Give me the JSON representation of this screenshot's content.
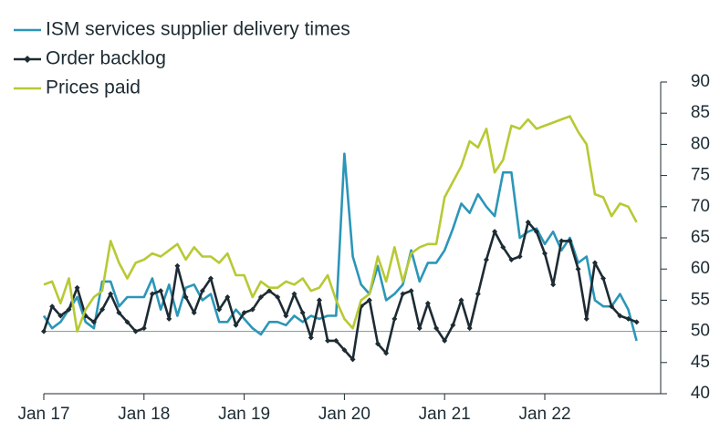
{
  "chart_data": {
    "type": "line",
    "categories": [
      "Jan 17",
      null,
      null,
      null,
      null,
      null,
      null,
      null,
      null,
      null,
      null,
      null,
      "Jan 18",
      null,
      null,
      null,
      null,
      null,
      null,
      null,
      null,
      null,
      null,
      null,
      "Jan 19",
      null,
      null,
      null,
      null,
      null,
      null,
      null,
      null,
      null,
      null,
      null,
      "Jan 20",
      null,
      null,
      null,
      null,
      null,
      null,
      null,
      null,
      null,
      null,
      null,
      "Jan 21",
      null,
      null,
      null,
      null,
      null,
      null,
      null,
      null,
      null,
      null,
      null,
      "Jan 22",
      null,
      null,
      null,
      null,
      null,
      null,
      null,
      null,
      null,
      null,
      null
    ],
    "series": [
      {
        "name": "ISM services supplier delivery times",
        "color": "#2b96b8",
        "values": [
          52.5,
          50.5,
          51.5,
          53.5,
          55.5,
          51.5,
          50.5,
          58,
          58,
          54,
          55.5,
          55.5,
          55.5,
          58.5,
          53.5,
          57.5,
          52.5,
          57,
          57.5,
          55,
          56,
          51.5,
          51.5,
          53.5,
          52,
          50.5,
          49.5,
          51.5,
          51.5,
          51,
          52.5,
          51.5,
          52.5,
          52,
          52.5,
          52.5,
          78.5,
          62,
          57.5,
          56,
          60.5,
          55,
          56,
          57.5,
          63,
          58,
          61,
          61,
          63,
          66.5,
          70.5,
          69,
          72,
          70,
          68.5,
          75.5,
          75.5,
          65,
          66,
          66.5,
          64,
          66,
          63,
          65,
          61,
          62,
          55,
          54,
          54,
          56,
          53.5,
          48.5
        ]
      },
      {
        "name": "Order backlog",
        "color": "#1d2b33",
        "marker": true,
        "values": [
          50,
          54,
          52.5,
          53.5,
          57,
          52.5,
          51.5,
          53.5,
          56,
          53,
          51.5,
          50,
          50.5,
          56,
          56.5,
          52,
          60.5,
          55.5,
          53,
          56.5,
          58.5,
          53.5,
          55.5,
          51,
          53,
          53.5,
          55.5,
          56.5,
          55.5,
          52.5,
          56,
          53,
          49,
          55,
          48.5,
          48.5,
          47,
          45.5,
          54,
          55,
          48,
          46.5,
          52,
          56,
          56.5,
          50.5,
          54.5,
          50.5,
          48.5,
          51,
          55,
          50.5,
          56,
          61.5,
          66,
          63.5,
          61.5,
          62,
          67.5,
          66,
          62.5,
          57.5,
          64.5,
          64.5,
          60,
          52,
          61,
          58.5,
          54,
          52.5,
          52,
          51.5
        ]
      },
      {
        "name": "Prices paid",
        "color": "#b8c934",
        "values": [
          57.5,
          58,
          54.5,
          58.5,
          50,
          53.5,
          55.5,
          56.5,
          64.5,
          61,
          58.5,
          61,
          61.5,
          62.5,
          62,
          63,
          64,
          61.5,
          63.5,
          62,
          62,
          61,
          62.5,
          59,
          59,
          55.5,
          58,
          57,
          57,
          58,
          57.5,
          58.5,
          56.5,
          57,
          59,
          55,
          52,
          50.5,
          55,
          56,
          62,
          58,
          63.5,
          58,
          62.5,
          63.5,
          64,
          64,
          71.5,
          74,
          76.5,
          80.5,
          79.5,
          82.5,
          75.5,
          77.5,
          83,
          82.5,
          84,
          82.5,
          83,
          83.5,
          84,
          84.5,
          82,
          80,
          72,
          71.5,
          68.5,
          70.5,
          70,
          67.5
        ]
      }
    ],
    "ylim": [
      40,
      90
    ],
    "yticks": [
      40,
      45,
      50,
      55,
      60,
      65,
      70,
      75,
      80,
      85,
      90
    ],
    "hline": 50,
    "legend": "upper-left"
  }
}
